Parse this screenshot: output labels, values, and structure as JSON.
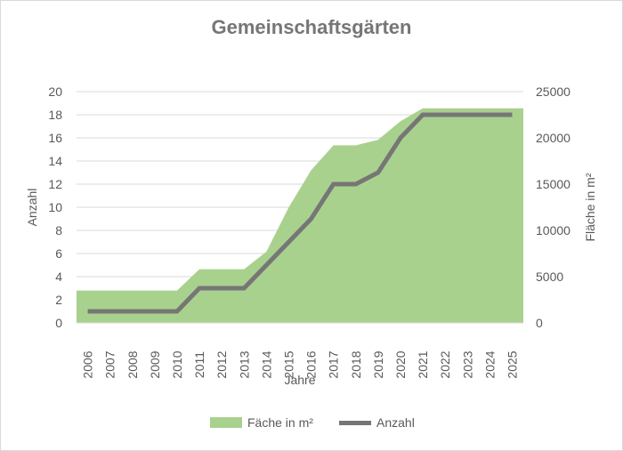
{
  "chart_data": {
    "type": "line",
    "title": "Gemeinschaftsgärten",
    "xlabel": "Jahre",
    "ylabel_left": "Anzahl",
    "ylabel_right": "Fläche in m²",
    "categories": [
      "2006",
      "2007",
      "2008",
      "2009",
      "2010",
      "2011",
      "2012",
      "2013",
      "2014",
      "2015",
      "2016",
      "2017",
      "2018",
      "2019",
      "2020",
      "2021",
      "2022",
      "2023",
      "2024",
      "2025"
    ],
    "y_left_ticks": [
      0,
      2,
      4,
      6,
      8,
      10,
      12,
      14,
      16,
      18,
      20
    ],
    "y_right_ticks": [
      0,
      5000,
      10000,
      15000,
      20000,
      25000
    ],
    "ylim_left": [
      0,
      20
    ],
    "ylim_right": [
      0,
      25000
    ],
    "grid": true,
    "legend_position": "bottom",
    "series": [
      {
        "name": "Fäche in m²",
        "kind": "area",
        "axis": "right",
        "color": "#a9d18e",
        "values": [
          3500,
          3500,
          3500,
          3500,
          3500,
          5800,
          5800,
          5800,
          7700,
          12500,
          16500,
          19200,
          19200,
          19800,
          21800,
          23200,
          23200,
          23200,
          23200,
          23200
        ]
      },
      {
        "name": "Anzahl",
        "kind": "line",
        "axis": "left",
        "color": "#767676",
        "values": [
          1,
          1,
          1,
          1,
          1,
          3,
          3,
          3,
          5,
          7,
          9,
          12,
          12,
          13,
          16,
          18,
          18,
          18,
          18,
          18
        ]
      }
    ]
  }
}
